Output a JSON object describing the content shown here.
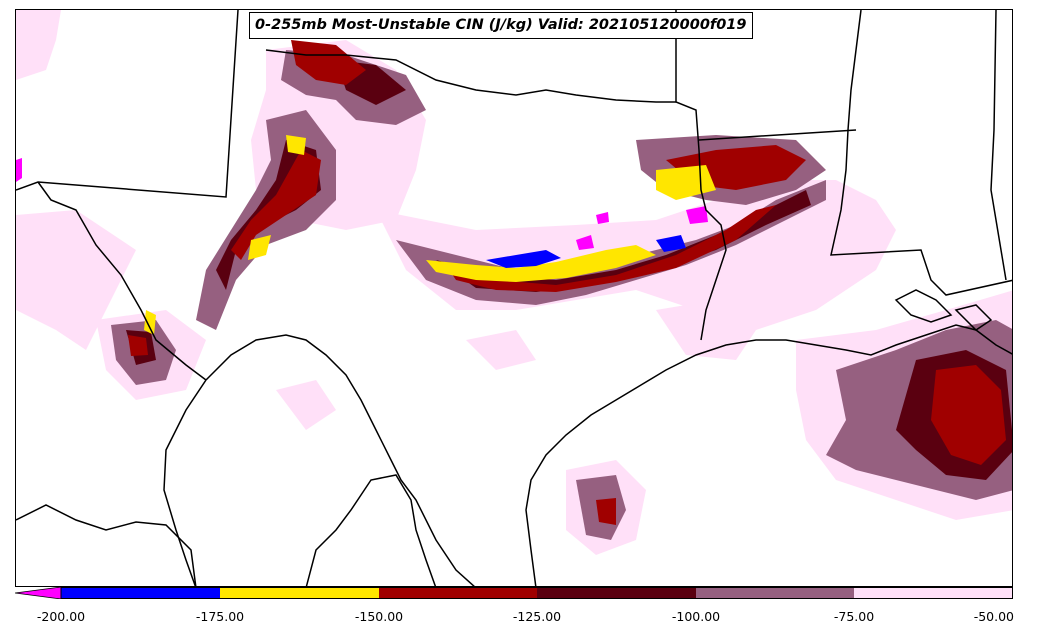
{
  "title": "0-255mb Most-Unstable CIN (J/kg) Valid: 202105120000f019",
  "colorbar": {
    "ticks": [
      "-200.00",
      "-175.00",
      "-150.00",
      "-125.00",
      "-100.00",
      "-75.00",
      "-50.00"
    ],
    "bins": [
      {
        "range": "< -200",
        "color": "#ff00ff"
      },
      {
        "range": "-200 to -175",
        "color": "#0000ff"
      },
      {
        "range": "-175 to -150",
        "color": "#ffe600"
      },
      {
        "range": "-150 to -125",
        "color": "#a00000"
      },
      {
        "range": "-125 to -100",
        "color": "#5a0010"
      },
      {
        "range": "-100 to -75",
        "color": "#966080"
      },
      {
        "range": "-75 to -50",
        "color": "#ffe0f8"
      }
    ]
  },
  "map": {
    "region": "Southern Plains / Texas",
    "features": [
      "state-borders",
      "coastline",
      "country-border"
    ]
  }
}
